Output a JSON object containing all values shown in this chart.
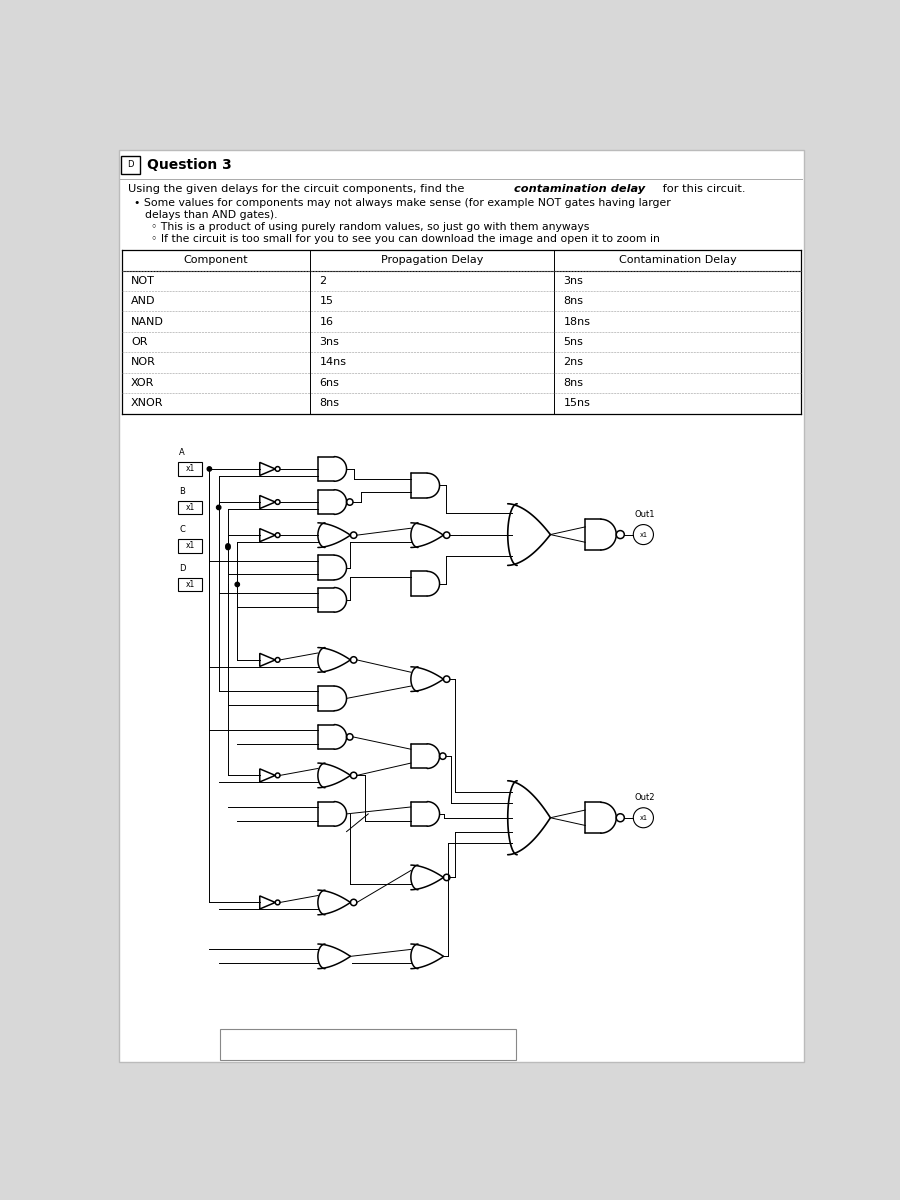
{
  "title": "Question 3",
  "bg_color": "#d8d8d8",
  "panel_color": "#ffffff",
  "table_rows": [
    [
      "NOT",
      "2",
      "3ns"
    ],
    [
      "AND",
      "15",
      "8ns"
    ],
    [
      "NAND",
      "16",
      "18ns"
    ],
    [
      "OR",
      "3ns",
      "5ns"
    ],
    [
      "NOR",
      "14ns",
      "2ns"
    ],
    [
      "XOR",
      "6ns",
      "8ns"
    ],
    [
      "XNOR",
      "8ns",
      "15ns"
    ]
  ],
  "lw": 1.0,
  "lw_thin": 0.7,
  "gate_lw": 1.1
}
